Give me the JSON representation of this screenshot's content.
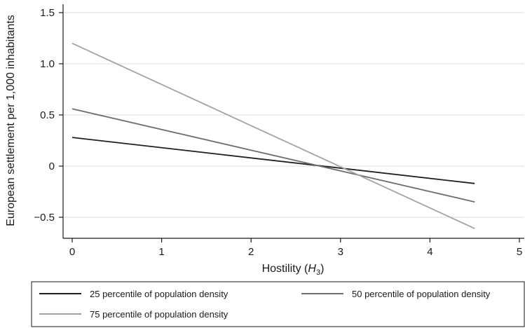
{
  "chart_data": {
    "type": "line",
    "xlabel": "Hostility (",
    "xlabel_sym": "H",
    "xlabel_sub": "3",
    "xlabel_end": ")",
    "ylabel": "European settlement per 1,000 inhabitants",
    "xlim": [
      0,
      5
    ],
    "ylim": [
      -0.72,
      1.6
    ],
    "x_ticks": [
      0,
      1,
      2,
      3,
      4,
      5
    ],
    "x_tick_labels": [
      "0",
      "1",
      "2",
      "3",
      "4",
      "5"
    ],
    "y_ticks": [
      -0.5,
      0,
      0.5,
      1.0,
      1.5
    ],
    "y_tick_labels": [
      "−0.5",
      "0",
      "0.5",
      "1.0",
      "1.5"
    ],
    "grid": true,
    "legend_position": "bottom",
    "series": [
      {
        "name": "25 percentile of population density",
        "color": "#1f1f1f",
        "x": [
          0,
          4.5
        ],
        "y": [
          0.28,
          -0.17
        ]
      },
      {
        "name": "50 percentile of population density",
        "color": "#6e6e6e",
        "x": [
          0,
          4.5
        ],
        "y": [
          0.56,
          -0.35
        ]
      },
      {
        "name": "75 percentile of population density",
        "color": "#a3a3a3",
        "x": [
          0,
          4.5
        ],
        "y": [
          1.2,
          -0.61
        ]
      }
    ]
  }
}
